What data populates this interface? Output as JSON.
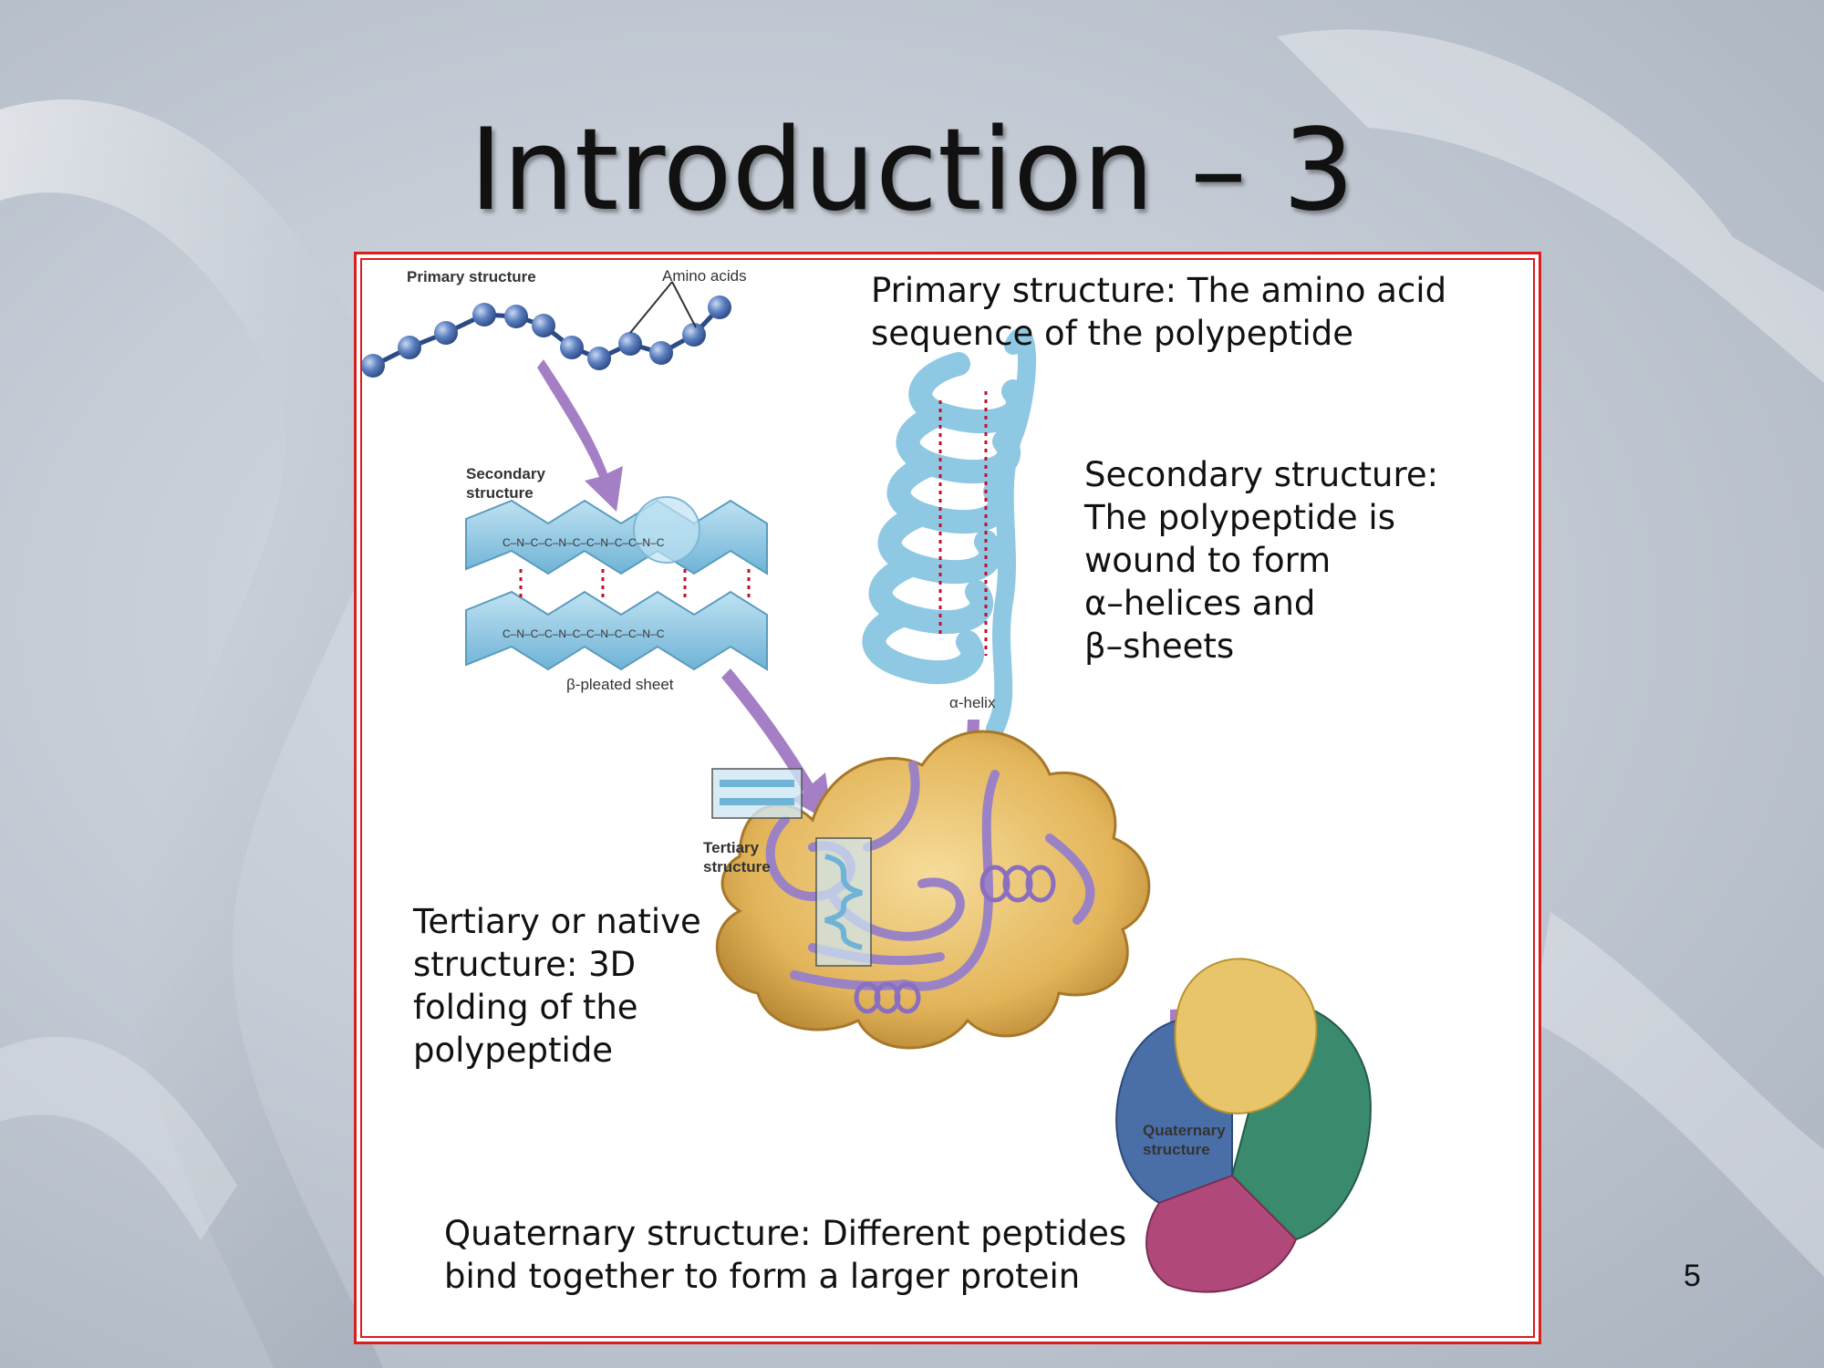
{
  "slide": {
    "title": "Introduction – 3",
    "page_number": "5"
  },
  "captions": {
    "primary": "Primary structure: The amino acid\nsequence of the polypeptide",
    "secondary": "Secondary structure:\nThe polypeptide is\nwound to form\nα–helices and\nβ–sheets",
    "tertiary": "Tertiary or native\nstructure: 3D\nfolding of the\npolypeptide",
    "quaternary": "Quaternary  structure:  Different  peptides\nbind together to form a larger protein"
  },
  "figure_labels": {
    "primary_structure": "Primary structure",
    "amino_acids": "Amino acids",
    "secondary_structure": "Secondary\nstructure",
    "beta_sheet": "β-pleated sheet",
    "alpha_helix": "α-helix",
    "tertiary_structure": "Tertiary\nstructure",
    "quaternary_structure": "Quaternary\nstructure"
  },
  "colors": {
    "frame_border": "#d91e1e",
    "amino_bead": "#5b7fbf",
    "arrow": "#a57fc6",
    "secondary_fill": "#8fc8e3",
    "tertiary_fill": "#e3b55a",
    "tertiary_chain": "#9a82c4",
    "quaternary_yellow": "#e8c56a",
    "quaternary_green": "#3a8a6e",
    "quaternary_blue": "#4a6fa8",
    "quaternary_magenta": "#b0497a"
  }
}
